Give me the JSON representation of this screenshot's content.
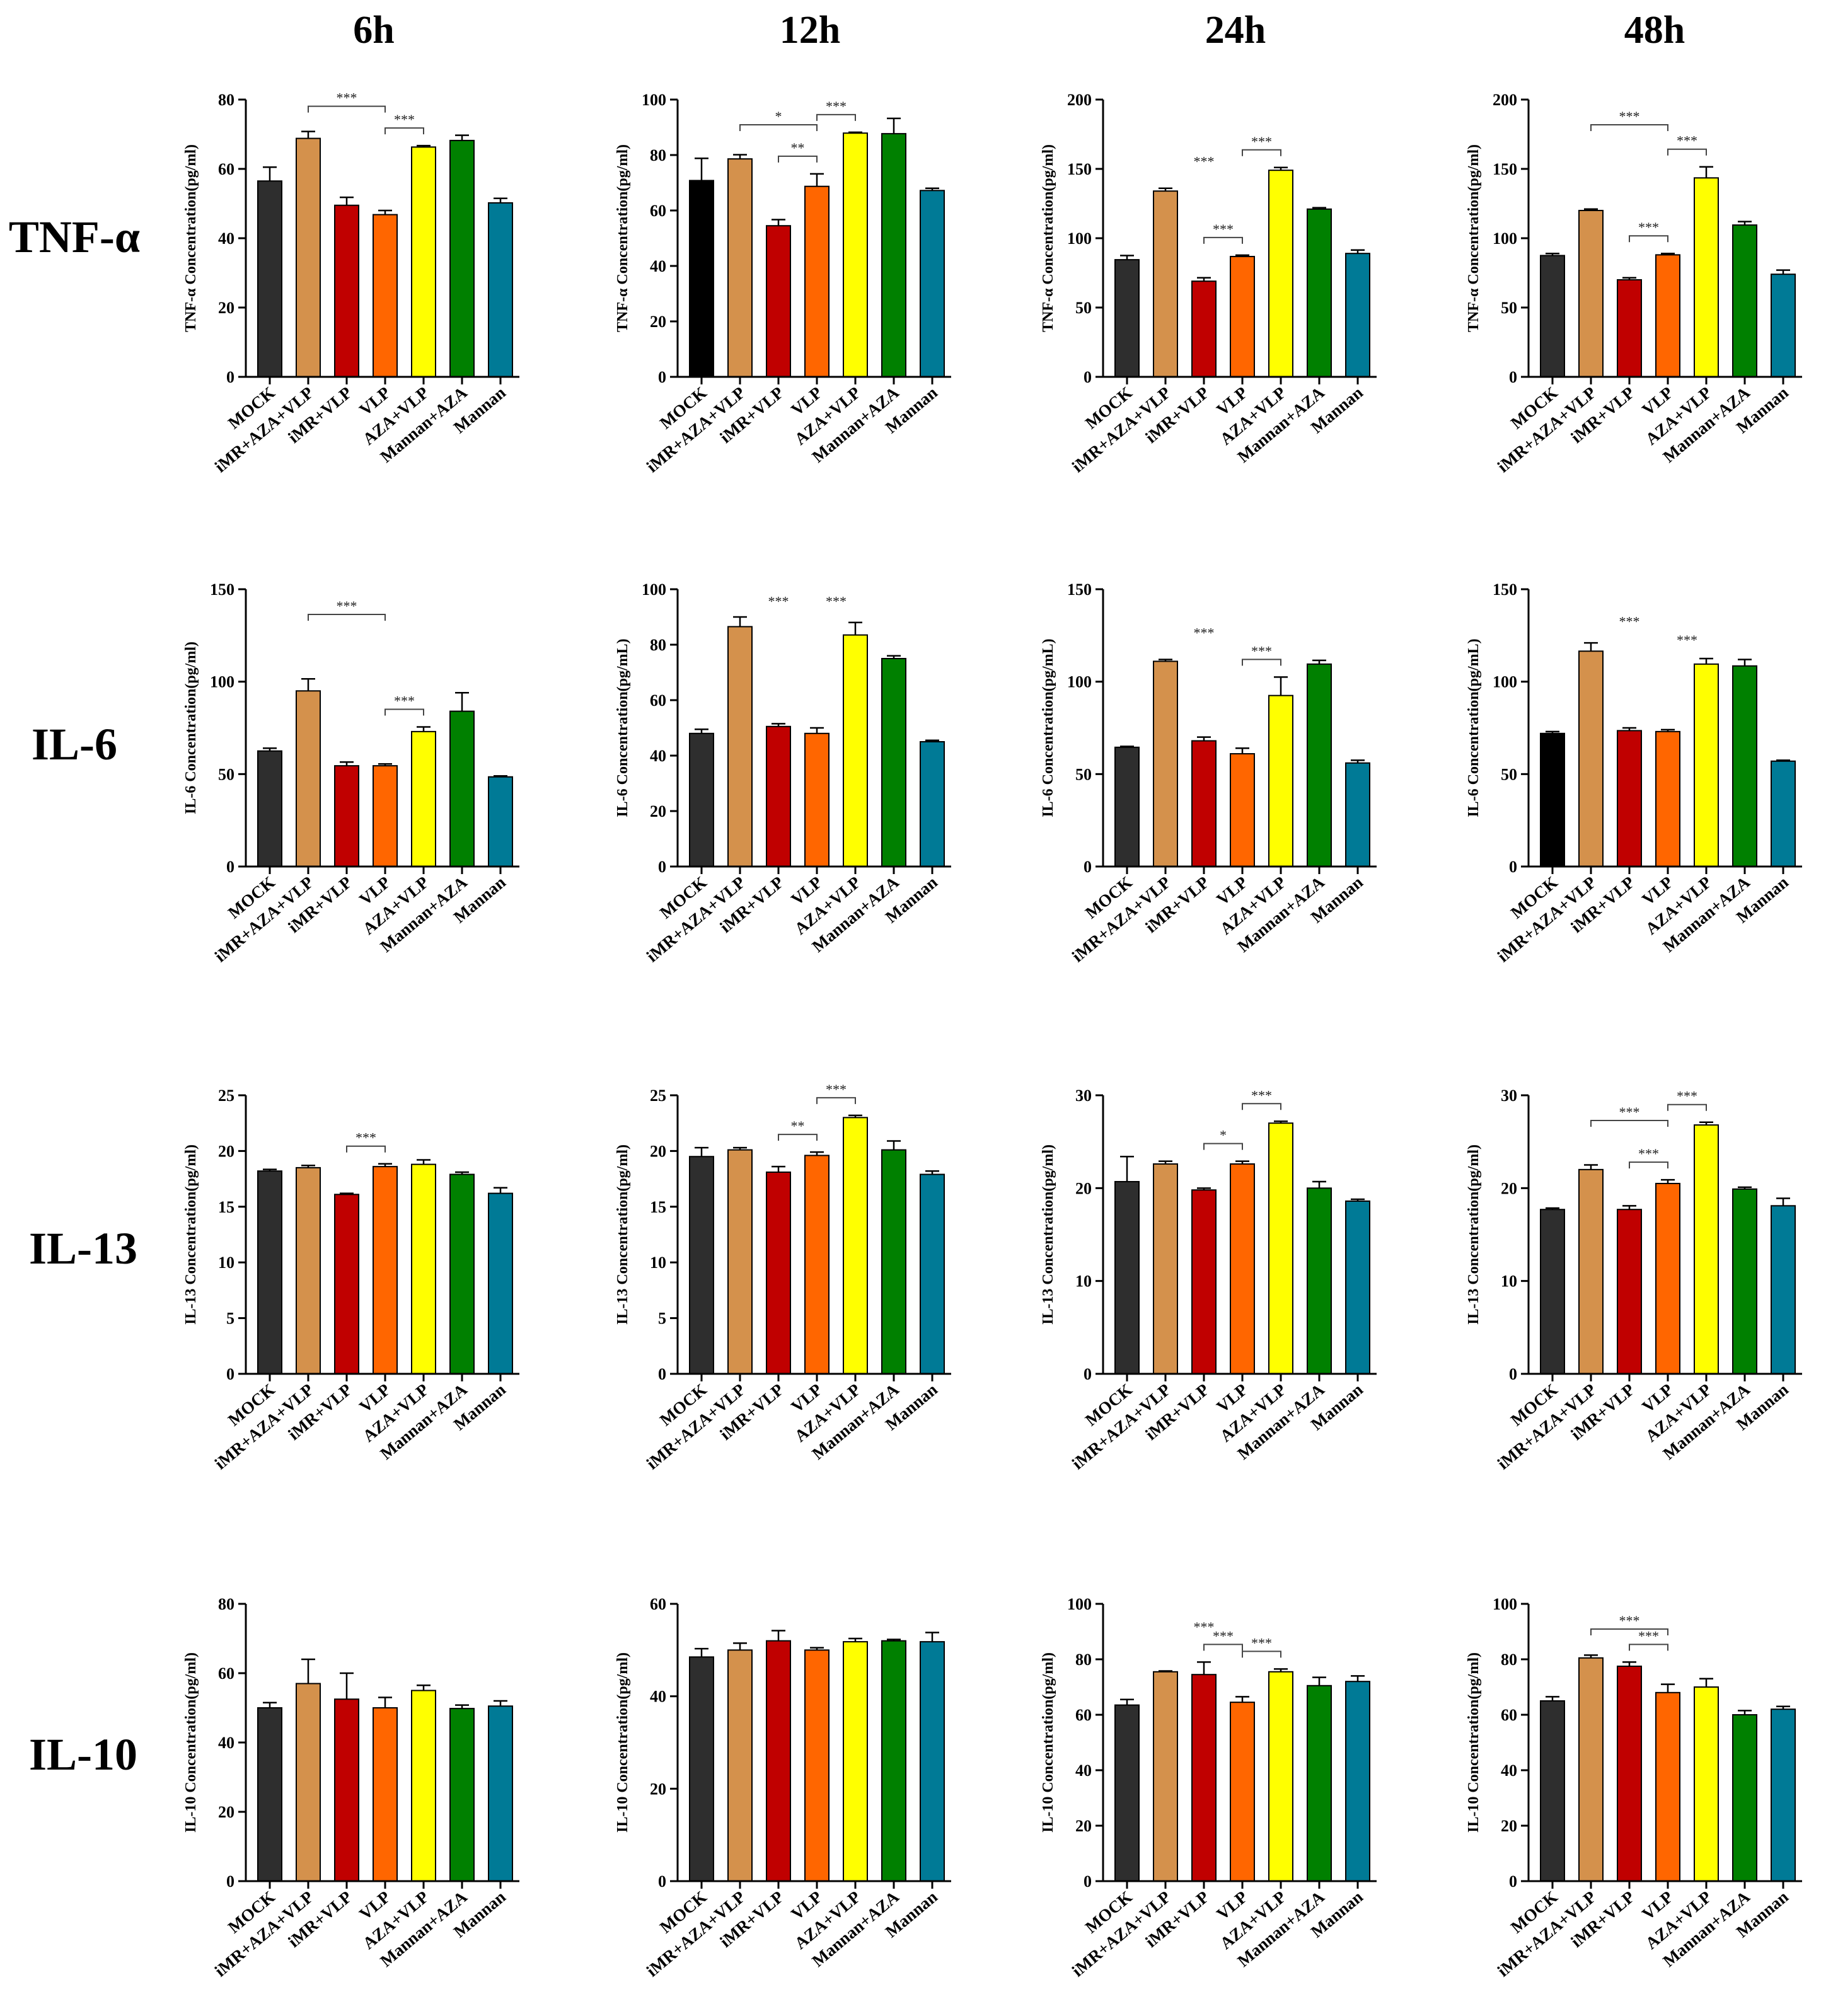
{
  "figure": {
    "column_headers": [
      "6h",
      "12h",
      "24h",
      "48h"
    ],
    "row_headers": [
      "TNF-α",
      "IL-6",
      "IL-13",
      "IL-10"
    ]
  },
  "colors": {
    "MOCK": "#2e2e2e",
    "iMR+AZA+VLP": "#d4914c",
    "iMR+VLP": "#c00000",
    "VLP": "#ff6600",
    "AZA+VLP": "#ffff00",
    "Mannan+AZA": "#008000",
    "Mannan": "#007a96",
    "MOCK_black": "#000000"
  },
  "chart_data": [
    {
      "type": "bar",
      "row": 0,
      "col": 0,
      "ylabel": "TNF-α Concentration(pg/ml)",
      "ylim": [
        0,
        80
      ],
      "yticks": [
        0,
        20,
        40,
        60,
        80
      ],
      "categories": [
        "MOCK",
        "iMR+AZA+VLP",
        "iMR+VLP",
        "VLP",
        "AZA+VLP",
        "Mannan+AZA",
        "Mannan"
      ],
      "values": [
        56.5,
        68.8,
        49.5,
        46.8,
        66.3,
        68.2,
        50.2
      ],
      "errors": [
        4.0,
        2.0,
        2.3,
        1.2,
        0.4,
        1.5,
        1.3
      ],
      "brackets": [
        {
          "from": 1,
          "to": 3,
          "label": "***"
        },
        {
          "from": 3,
          "to": 4,
          "label": "***"
        }
      ],
      "annotations": []
    },
    {
      "type": "bar",
      "row": 0,
      "col": 1,
      "ylabel": "TNF-α Concentration(pg/ml)",
      "ylim": [
        0,
        100
      ],
      "yticks": [
        0,
        20,
        40,
        60,
        80,
        100
      ],
      "categories": [
        "MOCK",
        "iMR+AZA+VLP",
        "iMR+VLP",
        "VLP",
        "AZA+VLP",
        "Mannan+AZA",
        "Mannan"
      ],
      "values": [
        70.8,
        78.6,
        54.5,
        68.7,
        87.9,
        87.7,
        67.2
      ],
      "errors": [
        8.0,
        1.5,
        2.2,
        4.5,
        0.3,
        5.5,
        0.8
      ],
      "brackets": [
        {
          "from": 1,
          "to": 3,
          "label": "*"
        },
        {
          "from": 2,
          "to": 3,
          "label": "**"
        },
        {
          "from": 3,
          "to": 4,
          "label": "***"
        }
      ],
      "annotations": []
    },
    {
      "type": "bar",
      "row": 0,
      "col": 2,
      "ylabel": "TNF-α Concentration(pg/ml)",
      "ylim": [
        0,
        200
      ],
      "yticks": [
        0,
        50,
        100,
        150,
        200
      ],
      "categories": [
        "MOCK",
        "iMR+AZA+VLP",
        "iMR+VLP",
        "VLP",
        "AZA+VLP",
        "Mannan+AZA",
        "Mannan"
      ],
      "values": [
        84.5,
        134.0,
        69.0,
        86.8,
        149.0,
        121.0,
        89.0
      ],
      "errors": [
        3.0,
        2.0,
        2.5,
        1.0,
        2.0,
        1.0,
        2.5
      ],
      "brackets": [
        {
          "from": 2,
          "to": 3,
          "label": "***"
        },
        {
          "from": 3,
          "to": 4,
          "label": "***"
        }
      ],
      "annotations": [
        {
          "at": 2,
          "v": 152,
          "label": "***"
        }
      ]
    },
    {
      "type": "bar",
      "row": 0,
      "col": 3,
      "ylabel": "TNF-α Concentration(pg/ml)",
      "ylim": [
        0,
        200
      ],
      "yticks": [
        0,
        50,
        100,
        150,
        200
      ],
      "categories": [
        "MOCK",
        "iMR+AZA+VLP",
        "iMR+VLP",
        "VLP",
        "AZA+VLP",
        "Mannan+AZA",
        "Mannan"
      ],
      "values": [
        87.5,
        120.0,
        70.0,
        88.0,
        143.5,
        109.5,
        74.0
      ],
      "errors": [
        1.5,
        1.0,
        1.5,
        1.0,
        8.0,
        2.5,
        3.0
      ],
      "brackets": [
        {
          "from": 1,
          "to": 3,
          "label": "***"
        },
        {
          "from": 2,
          "to": 3,
          "label": "***"
        },
        {
          "from": 3,
          "to": 4,
          "label": "***"
        }
      ],
      "annotations": []
    },
    {
      "type": "bar",
      "row": 1,
      "col": 0,
      "ylabel": "IL-6 Concentration(pg/ml)",
      "ylim": [
        0,
        150
      ],
      "yticks": [
        0,
        50,
        100,
        150
      ],
      "categories": [
        "MOCK",
        "iMR+AZA+VLP",
        "iMR+VLP",
        "VLP",
        "AZA+VLP",
        "Mannan+AZA",
        "Mannan"
      ],
      "values": [
        62.5,
        95.0,
        54.5,
        54.5,
        73.0,
        84.0,
        48.5
      ],
      "errors": [
        1.5,
        6.5,
        2.0,
        1.0,
        2.5,
        10.0,
        0.5
      ],
      "brackets": [
        {
          "from": 1,
          "to": 3,
          "label": "***"
        },
        {
          "from": 3,
          "to": 4,
          "label": "***"
        }
      ],
      "annotations": []
    },
    {
      "type": "bar",
      "row": 1,
      "col": 1,
      "ylabel": "IL-6 Concentration(pg/mL)",
      "ylim": [
        0,
        100
      ],
      "yticks": [
        0,
        20,
        40,
        60,
        80,
        100
      ],
      "categories": [
        "MOCK",
        "iMR+AZA+VLP",
        "iMR+VLP",
        "VLP",
        "AZA+VLP",
        "Mannan+AZA",
        "Mannan"
      ],
      "values": [
        48.0,
        86.5,
        50.5,
        48.0,
        83.5,
        75.0,
        45.0
      ],
      "errors": [
        1.5,
        3.5,
        1.0,
        2.0,
        4.5,
        1.0,
        0.5
      ],
      "brackets": [],
      "annotations": [
        {
          "at": 2,
          "v": 94,
          "label": "***"
        },
        {
          "at": 3.5,
          "v": 94,
          "label": "***"
        }
      ]
    },
    {
      "type": "bar",
      "row": 1,
      "col": 2,
      "ylabel": "IL-6 Concentration(pg/mL)",
      "ylim": [
        0,
        150
      ],
      "yticks": [
        0,
        50,
        100,
        150
      ],
      "categories": [
        "MOCK",
        "iMR+AZA+VLP",
        "iMR+VLP",
        "VLP",
        "AZA+VLP",
        "Mannan+AZA",
        "Mannan"
      ],
      "values": [
        64.5,
        111.0,
        68.0,
        61.0,
        92.5,
        109.5,
        56.0
      ],
      "errors": [
        0.5,
        1.0,
        2.0,
        3.0,
        10.0,
        2.0,
        1.5
      ],
      "brackets": [
        {
          "from": 3,
          "to": 4,
          "label": "***"
        }
      ],
      "annotations": [
        {
          "at": 2,
          "v": 124,
          "label": "***"
        }
      ]
    },
    {
      "type": "bar",
      "row": 1,
      "col": 3,
      "ylabel": "IL-6 Concentration(pg/mL)",
      "ylim": [
        0,
        150
      ],
      "yticks": [
        0,
        50,
        100,
        150
      ],
      "categories": [
        "MOCK",
        "iMR+AZA+VLP",
        "iMR+VLP",
        "VLP",
        "AZA+VLP",
        "Mannan+AZA",
        "Mannan"
      ],
      "values": [
        72.0,
        116.5,
        73.5,
        73.0,
        109.5,
        108.5,
        57.0
      ],
      "errors": [
        1.0,
        4.5,
        1.5,
        1.0,
        3.0,
        3.5,
        0.5
      ],
      "brackets": [],
      "annotations": [
        {
          "at": 2,
          "v": 130,
          "label": "***"
        },
        {
          "at": 3.5,
          "v": 120,
          "label": "***"
        }
      ]
    },
    {
      "type": "bar",
      "row": 2,
      "col": 0,
      "ylabel": "IL-13 Concentration(pg/ml)",
      "ylim": [
        0,
        25
      ],
      "yticks": [
        0,
        5,
        10,
        15,
        20,
        25
      ],
      "categories": [
        "MOCK",
        "iMR+AZA+VLP",
        "iMR+VLP",
        "VLP",
        "AZA+VLP",
        "Mannan+AZA",
        "Mannan"
      ],
      "values": [
        18.2,
        18.5,
        16.1,
        18.6,
        18.8,
        17.9,
        16.2
      ],
      "errors": [
        0.15,
        0.2,
        0.1,
        0.25,
        0.4,
        0.2,
        0.5
      ],
      "brackets": [
        {
          "from": 2,
          "to": 3,
          "label": "***"
        }
      ],
      "annotations": []
    },
    {
      "type": "bar",
      "row": 2,
      "col": 1,
      "ylabel": "IL-13 Concentration(pg/ml)",
      "ylim": [
        0,
        25
      ],
      "yticks": [
        0,
        5,
        10,
        15,
        20,
        25
      ],
      "categories": [
        "MOCK",
        "iMR+AZA+VLP",
        "iMR+VLP",
        "VLP",
        "AZA+VLP",
        "Mannan+AZA",
        "Mannan"
      ],
      "values": [
        19.5,
        20.1,
        18.1,
        19.6,
        23.0,
        20.1,
        17.9
      ],
      "errors": [
        0.8,
        0.2,
        0.5,
        0.3,
        0.2,
        0.8,
        0.3
      ],
      "brackets": [
        {
          "from": 2,
          "to": 3,
          "label": "**"
        },
        {
          "from": 3,
          "to": 4,
          "label": "***"
        }
      ],
      "annotations": []
    },
    {
      "type": "bar",
      "row": 2,
      "col": 2,
      "ylabel": "IL-13 Concentration(pg/ml)",
      "ylim": [
        0,
        30
      ],
      "yticks": [
        0,
        10,
        20,
        30
      ],
      "categories": [
        "MOCK",
        "iMR+AZA+VLP",
        "iMR+VLP",
        "VLP",
        "AZA+VLP",
        "Mannan+AZA",
        "Mannan"
      ],
      "values": [
        20.7,
        22.6,
        19.8,
        22.6,
        27.0,
        20.0,
        18.6
      ],
      "errors": [
        2.7,
        0.3,
        0.2,
        0.3,
        0.2,
        0.7,
        0.2
      ],
      "brackets": [
        {
          "from": 2,
          "to": 3,
          "label": "*"
        },
        {
          "from": 3,
          "to": 4,
          "label": "***"
        }
      ],
      "annotations": []
    },
    {
      "type": "bar",
      "row": 2,
      "col": 3,
      "ylabel": "IL-13 Concentration(pg/ml)",
      "ylim": [
        0,
        30
      ],
      "yticks": [
        0,
        10,
        20,
        30
      ],
      "categories": [
        "MOCK",
        "iMR+AZA+VLP",
        "iMR+VLP",
        "VLP",
        "AZA+VLP",
        "Mannan+AZA",
        "Mannan"
      ],
      "values": [
        17.7,
        22.0,
        17.7,
        20.5,
        26.8,
        19.9,
        18.1
      ],
      "errors": [
        0.15,
        0.5,
        0.4,
        0.4,
        0.3,
        0.2,
        0.8
      ],
      "brackets": [
        {
          "from": 1,
          "to": 3,
          "label": "***"
        },
        {
          "from": 2,
          "to": 3,
          "label": "***"
        },
        {
          "from": 3,
          "to": 4,
          "label": "***"
        }
      ],
      "annotations": []
    },
    {
      "type": "bar",
      "row": 3,
      "col": 0,
      "ylabel": "IL-10 Concentration(pg/ml)",
      "ylim": [
        0,
        80
      ],
      "yticks": [
        0,
        20,
        40,
        60,
        80
      ],
      "categories": [
        "MOCK",
        "iMR+AZA+VLP",
        "iMR+VLP",
        "VLP",
        "AZA+VLP",
        "Mannan+AZA",
        "Mannan"
      ],
      "values": [
        50.0,
        57.0,
        52.5,
        50.0,
        55.0,
        49.8,
        50.5
      ],
      "errors": [
        1.5,
        7.0,
        7.5,
        3.0,
        1.5,
        1.0,
        1.5
      ],
      "brackets": [],
      "annotations": []
    },
    {
      "type": "bar",
      "row": 3,
      "col": 1,
      "ylabel": "IL-10 Concentration(pg/ml)",
      "ylim": [
        0,
        60
      ],
      "yticks": [
        0,
        20,
        40,
        60
      ],
      "categories": [
        "MOCK",
        "iMR+AZA+VLP",
        "iMR+VLP",
        "VLP",
        "AZA+VLP",
        "Mannan+AZA",
        "Mannan"
      ],
      "values": [
        48.5,
        50.0,
        52.0,
        50.0,
        51.8,
        52.0,
        51.8
      ],
      "errors": [
        1.8,
        1.5,
        2.2,
        0.5,
        0.7,
        0.3,
        2.0
      ],
      "brackets": [],
      "annotations": []
    },
    {
      "type": "bar",
      "row": 3,
      "col": 2,
      "ylabel": "IL-10 Concentration(pg/ml)",
      "ylim": [
        0,
        100
      ],
      "yticks": [
        0,
        20,
        40,
        60,
        80,
        100
      ],
      "categories": [
        "MOCK",
        "iMR+AZA+VLP",
        "iMR+VLP",
        "VLP",
        "AZA+VLP",
        "Mannan+AZA",
        "Mannan"
      ],
      "values": [
        63.5,
        75.5,
        74.5,
        64.5,
        75.5,
        70.5,
        72.0
      ],
      "errors": [
        2.0,
        0.3,
        4.5,
        2.0,
        1.0,
        3.0,
        2.0
      ],
      "brackets": [
        {
          "from": 2,
          "to": 3,
          "label": "***"
        },
        {
          "from": 3,
          "to": 4,
          "label": "***"
        }
      ],
      "annotations": [
        {
          "at": 2,
          "v": 90,
          "label": "***"
        }
      ]
    },
    {
      "type": "bar",
      "row": 3,
      "col": 3,
      "ylabel": "IL-10 Concentration(pg/ml)",
      "ylim": [
        0,
        100
      ],
      "yticks": [
        0,
        20,
        40,
        60,
        80,
        100
      ],
      "categories": [
        "MOCK",
        "iMR+AZA+VLP",
        "iMR+VLP",
        "VLP",
        "AZA+VLP",
        "Mannan+AZA",
        "Mannan"
      ],
      "values": [
        65.0,
        80.5,
        77.5,
        68.0,
        70.0,
        60.0,
        62.0
      ],
      "errors": [
        1.5,
        1.0,
        1.5,
        3.0,
        3.0,
        1.5,
        1.0
      ],
      "brackets": [
        {
          "from": 1,
          "to": 3,
          "label": "***"
        },
        {
          "from": 2,
          "to": 3,
          "label": "***"
        }
      ],
      "annotations": []
    }
  ]
}
